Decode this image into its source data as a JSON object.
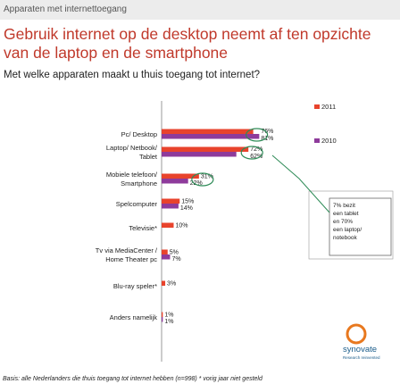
{
  "header": {
    "section_label": "Apparaten met internettoegang",
    "title": "Gebruik internet op de desktop neemt af ten opzichte van de laptop en de smartphone",
    "question": "Met welke apparaten maakt u thuis toegang tot internet?"
  },
  "chart_data": {
    "type": "bar",
    "orientation": "horizontal",
    "categories": [
      "Pc/ Desktop",
      "Laptop/ Netbook/ Tablet",
      "Mobiele telefoon/ Smartphone",
      "Spelcomputer",
      "Televisie*",
      "Tv via MediaCenter / Home Theater pc",
      "Blu-ray speler*",
      "Anders namelijk"
    ],
    "series": [
      {
        "name": "2011",
        "color": "#e8432c",
        "values": [
          76,
          72,
          31,
          15,
          10,
          5,
          3,
          1
        ]
      },
      {
        "name": "2010",
        "color": "#8e3b9b",
        "values": [
          81,
          62,
          22,
          14,
          null,
          7,
          null,
          1
        ]
      }
    ],
    "data_labels": {
      "2011": [
        "76%",
        "72%",
        "31%",
        "15%",
        "10%",
        "5%",
        "3%",
        "1%"
      ],
      "2010": [
        "81%",
        "62%",
        "22%",
        "14%",
        "",
        "7%",
        "",
        "1%"
      ]
    },
    "highlighted_categories": [
      "Pc/ Desktop",
      "Laptop/ Netbook/ Tablet",
      "Mobiele telefoon/ Smartphone"
    ],
    "legend_position": "top-right",
    "xlim": [
      0,
      100
    ],
    "callout": {
      "lines": [
        "7% bezit",
        "een tablet",
        "en 70%",
        "een laptop/",
        "notebook"
      ],
      "points_to": "Laptop/ Netbook/ Tablet"
    }
  },
  "footnote": "Basis: alle Nederlanders die thuis toegang tot internet hebben (n=998) * vorig jaar niet gesteld",
  "brand": {
    "name": "synovate",
    "tagline": "Research reinvented",
    "accent_color": "#e8781e"
  }
}
